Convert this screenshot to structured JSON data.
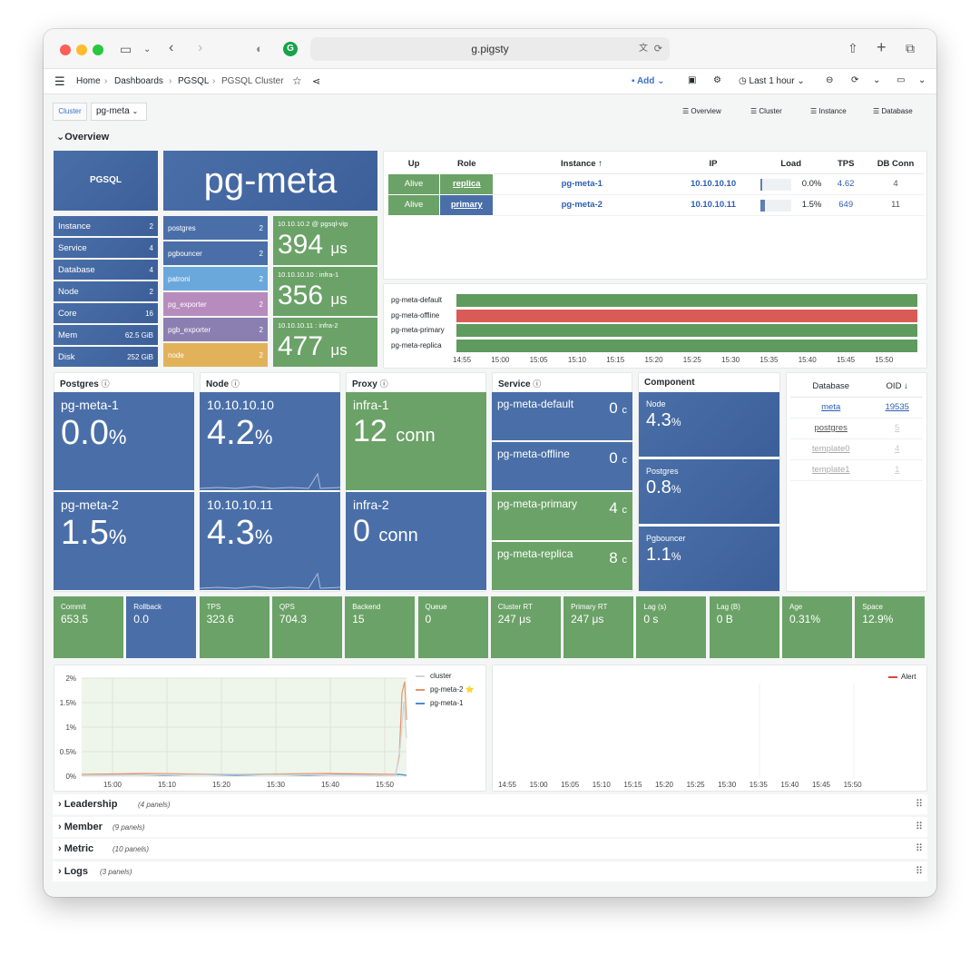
{
  "browser": {
    "url": "g.pigsty"
  },
  "breadcrumb": [
    "Home",
    "Dashboards",
    "PGSQL",
    "PGSQL Cluster"
  ],
  "toolbar": {
    "add": "Add",
    "time_range": "Last 1 hour"
  },
  "variables": {
    "cluster_label": "Cluster",
    "cluster_value": "pg-meta"
  },
  "quick_links": [
    "Overview",
    "Cluster",
    "Instance",
    "Database"
  ],
  "overview_row": "Overview",
  "pgsql_tile": "PGSQL",
  "cluster_name": "pg-meta",
  "stats": [
    {
      "label": "Instance",
      "value": "2"
    },
    {
      "label": "Service",
      "value": "4"
    },
    {
      "label": "Database",
      "value": "4"
    },
    {
      "label": "Node",
      "value": "2"
    },
    {
      "label": "Core",
      "value": "16"
    },
    {
      "label": "Mem",
      "value": "62.5 GiB"
    },
    {
      "label": "Disk",
      "value": "252 GiB"
    }
  ],
  "components": [
    {
      "label": "postgres",
      "value": "2",
      "color": "#4a6fa8"
    },
    {
      "label": "pgbouncer",
      "value": "2",
      "color": "#4a6fa8"
    },
    {
      "label": "patroni",
      "value": "2",
      "color": "#6aa8dc"
    },
    {
      "label": "pg_exporter",
      "value": "2",
      "color": "#b78bbd"
    },
    {
      "label": "pgb_exporter",
      "value": "2",
      "color": "#8a7fb0"
    },
    {
      "label": "node",
      "value": "2",
      "color": "#e2b25a"
    }
  ],
  "latency": [
    {
      "label": "10.10.10.2 @ pgsql-vip",
      "value": "394",
      "unit": "μs"
    },
    {
      "label": "10.10.10.10 : infra-1",
      "value": "356",
      "unit": "μs"
    },
    {
      "label": "10.10.10.11 : infra-2",
      "value": "477",
      "unit": "μs"
    }
  ],
  "inst_table": {
    "headers": [
      "Up",
      "Role",
      "Instance",
      "IP",
      "Load",
      "TPS",
      "DB Conn"
    ],
    "rows": [
      {
        "up": "Alive",
        "role": "replica",
        "instance": "pg-meta-1",
        "ip": "10.10.10.10",
        "load": "0.0%",
        "load_frac": 0.0,
        "tps": "4.62",
        "conn": "4"
      },
      {
        "up": "Alive",
        "role": "primary",
        "instance": "pg-meta-2",
        "ip": "10.10.10.11",
        "load": "1.5%",
        "load_frac": 0.015,
        "tps": "649",
        "conn": "11"
      }
    ]
  },
  "service_timeline": {
    "rows": [
      {
        "name": "pg-meta-default",
        "color": "#5f9a5e"
      },
      {
        "name": "pg-meta-offline",
        "color": "#d85c55"
      },
      {
        "name": "pg-meta-primary",
        "color": "#5f9a5e"
      },
      {
        "name": "pg-meta-replica",
        "color": "#5f9a5e"
      }
    ],
    "ticks": [
      "14:55",
      "15:00",
      "15:05",
      "15:10",
      "15:15",
      "15:20",
      "15:25",
      "15:30",
      "15:35",
      "15:40",
      "15:45",
      "15:50"
    ]
  },
  "sections": {
    "postgres": "Postgres",
    "node": "Node",
    "proxy": "Proxy",
    "service": "Service",
    "component": "Component"
  },
  "postgres_tiles": [
    {
      "name": "pg-meta-1",
      "value": "0.0",
      "unit": "%"
    },
    {
      "name": "pg-meta-2",
      "value": "1.5",
      "unit": "%"
    }
  ],
  "node_tiles": [
    {
      "name": "10.10.10.10",
      "value": "4.2",
      "unit": "%"
    },
    {
      "name": "10.10.10.11",
      "value": "4.3",
      "unit": "%"
    }
  ],
  "proxy_tiles": [
    {
      "name": "infra-1",
      "value": "12",
      "unit": "conn"
    },
    {
      "name": "infra-2",
      "value": "0",
      "unit": "conn"
    }
  ],
  "service_tiles": [
    {
      "name": "pg-meta-default",
      "value": "0",
      "unit": "c"
    },
    {
      "name": "pg-meta-offline",
      "value": "0",
      "unit": "c"
    },
    {
      "name": "pg-meta-primary",
      "value": "4",
      "unit": "c"
    },
    {
      "name": "pg-meta-replica",
      "value": "8",
      "unit": "c"
    }
  ],
  "component_tiles": [
    {
      "name": "Node",
      "value": "4.3",
      "unit": "%"
    },
    {
      "name": "Postgres",
      "value": "0.8",
      "unit": "%"
    },
    {
      "name": "Pgbouncer",
      "value": "1.1",
      "unit": "%"
    }
  ],
  "db_table": {
    "headers": [
      "Database",
      "OID"
    ],
    "rows": [
      {
        "name": "meta",
        "oid": "19535"
      },
      {
        "name": "postgres",
        "oid": "5"
      },
      {
        "name": "template0",
        "oid": "4"
      },
      {
        "name": "template1",
        "oid": "1"
      }
    ]
  },
  "metrics": [
    {
      "label": "Commit",
      "value": "653.5",
      "color": "#6ba267"
    },
    {
      "label": "Rollback",
      "value": "0.0",
      "color": "#4a6fa8"
    },
    {
      "label": "TPS",
      "value": "323.6",
      "color": "#6ba267"
    },
    {
      "label": "QPS",
      "value": "704.3",
      "color": "#6ba267"
    },
    {
      "label": "Backend",
      "value": "15",
      "color": "#6ba267"
    },
    {
      "label": "Queue",
      "value": "0",
      "color": "#6ba267"
    },
    {
      "label": "Cluster RT",
      "value": "247 μs",
      "color": "#6ba267"
    },
    {
      "label": "Primary RT",
      "value": "247 μs",
      "color": "#6ba267"
    },
    {
      "label": "Lag (s)",
      "value": "0 s",
      "color": "#6ba267"
    },
    {
      "label": "Lag (B)",
      "value": "0 B",
      "color": "#6ba267"
    },
    {
      "label": "Age",
      "value": "0.31%",
      "color": "#6ba267"
    },
    {
      "label": "Space",
      "value": "12.9%",
      "color": "#6ba267"
    }
  ],
  "chart_data": [
    {
      "type": "line",
      "title": "",
      "yticks": [
        "2%",
        "1.5%",
        "1%",
        "0.5%",
        "0%"
      ],
      "ylim": [
        0,
        2
      ],
      "xticks": [
        "15:00",
        "15:10",
        "15:20",
        "15:30",
        "15:40",
        "15:50"
      ],
      "legend": "right",
      "series": [
        {
          "name": "cluster",
          "color": "#cfd6dc"
        },
        {
          "name": "pg-meta-2 ⭐",
          "color": "#e8946a"
        },
        {
          "name": "pg-meta-1",
          "color": "#4b8ad8"
        }
      ],
      "grid": true
    },
    {
      "type": "line",
      "title": "",
      "xticks": [
        "14:55",
        "15:00",
        "15:05",
        "15:10",
        "15:15",
        "15:20",
        "15:25",
        "15:30",
        "15:35",
        "15:40",
        "15:45",
        "15:50"
      ],
      "legend": "top-right",
      "series": [
        {
          "name": "Alert",
          "color": "#d44a3a"
        }
      ],
      "grid": false
    }
  ],
  "collapsed_rows": [
    {
      "title": "Leadership",
      "count": "(4 panels)"
    },
    {
      "title": "Member",
      "count": "(9 panels)"
    },
    {
      "title": "Metric",
      "count": "(10 panels)"
    },
    {
      "title": "Logs",
      "count": "(3 panels)"
    }
  ]
}
